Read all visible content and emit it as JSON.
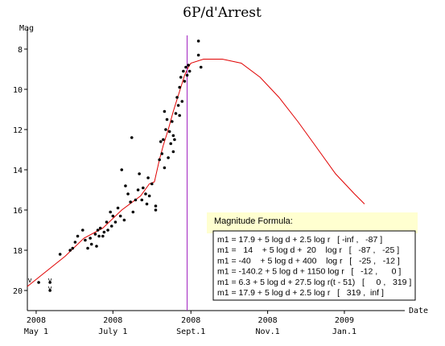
{
  "chart_data": {
    "type": "scatter",
    "title": "6P/d'Arrest",
    "ylabel": "Mag",
    "xlabel": "Date",
    "y_inverted": true,
    "ylim": [
      7,
      21
    ],
    "x_unit": "days relative to Sept.1 2008",
    "xlim": [
      -130,
      170
    ],
    "y_ticks": [
      8,
      10,
      12,
      14,
      16,
      18,
      20
    ],
    "x_ticks": [
      {
        "x": -123,
        "year": "2008",
        "label": "May 1"
      },
      {
        "x": -62,
        "year": "2008",
        "label": "July 1"
      },
      {
        "x": 0,
        "year": "2008",
        "label": "Sept.1"
      },
      {
        "x": 61,
        "year": "2008",
        "label": "Nov.1"
      },
      {
        "x": 122,
        "year": "2009",
        "label": "Jan.1"
      }
    ],
    "perihelion_x": -3,
    "observations": [
      [
        -121,
        19.6
      ],
      [
        -112,
        19.6
      ],
      [
        -112,
        20.0
      ],
      [
        -104,
        18.2
      ],
      [
        -96,
        18.0
      ],
      [
        -94,
        17.9
      ],
      [
        -92,
        17.6
      ],
      [
        -90,
        17.3
      ],
      [
        -86,
        17.0
      ],
      [
        -84,
        17.5
      ],
      [
        -82,
        17.9
      ],
      [
        -80,
        17.4
      ],
      [
        -79,
        17.7
      ],
      [
        -76,
        17.2
      ],
      [
        -75,
        17.8
      ],
      [
        -74,
        17.0
      ],
      [
        -73,
        17.3
      ],
      [
        -72,
        16.9
      ],
      [
        -70,
        17.3
      ],
      [
        -69,
        17.1
      ],
      [
        -67,
        16.6
      ],
      [
        -66,
        17.0
      ],
      [
        -64,
        16.1
      ],
      [
        -63,
        16.8
      ],
      [
        -62,
        16.3
      ],
      [
        -60,
        16.6
      ],
      [
        -58,
        15.9
      ],
      [
        -56,
        16.3
      ],
      [
        -55,
        14.0
      ],
      [
        -53,
        16.5
      ],
      [
        -52,
        14.8
      ],
      [
        -50,
        15.2
      ],
      [
        -48,
        15.6
      ],
      [
        -47,
        12.4
      ],
      [
        -46,
        16.1
      ],
      [
        -44,
        15.5
      ],
      [
        -42,
        15.0
      ],
      [
        -41,
        14.2
      ],
      [
        -39,
        15.5
      ],
      [
        -38,
        14.9
      ],
      [
        -36,
        15.2
      ],
      [
        -35,
        15.7
      ],
      [
        -34,
        14.4
      ],
      [
        -33,
        15.3
      ],
      [
        -31,
        14.7
      ],
      [
        -28,
        16.0
      ],
      [
        -28,
        15.8
      ],
      [
        -25,
        13.5
      ],
      [
        -24,
        12.6
      ],
      [
        -23,
        13.2
      ],
      [
        -22,
        12.5
      ],
      [
        -21,
        13.9
      ],
      [
        -21,
        11.1
      ],
      [
        -20,
        12.0
      ],
      [
        -19,
        11.5
      ],
      [
        -18,
        13.4
      ],
      [
        -17,
        12.1
      ],
      [
        -16,
        12.7
      ],
      [
        -15,
        11.6
      ],
      [
        -14,
        12.3
      ],
      [
        -14,
        13.1
      ],
      [
        -13,
        12.5
      ],
      [
        -12,
        11.2
      ],
      [
        -11,
        10.4
      ],
      [
        -10,
        10.8
      ],
      [
        -9,
        11.3
      ],
      [
        -9,
        9.9
      ],
      [
        -8,
        9.4
      ],
      [
        -7,
        10.6
      ],
      [
        -6,
        9.1
      ],
      [
        -5,
        9.6
      ],
      [
        -4,
        8.9
      ],
      [
        -3,
        9.3
      ],
      [
        -2,
        8.8
      ],
      [
        -1,
        9.1
      ],
      [
        6,
        7.6
      ],
      [
        6,
        8.3
      ],
      [
        8,
        8.9
      ]
    ],
    "fit_curve": [
      [
        -130,
        19.8
      ],
      [
        -100,
        18.3
      ],
      [
        -85,
        17.4
      ],
      [
        -70,
        16.9
      ],
      [
        -55,
        16.0
      ],
      [
        -40,
        15.3
      ],
      [
        -33,
        14.7
      ],
      [
        -29,
        14.6
      ],
      [
        -25,
        13.5
      ],
      [
        -22,
        12.8
      ],
      [
        -18,
        12.0
      ],
      [
        -14,
        11.1
      ],
      [
        -10,
        10.3
      ],
      [
        -5,
        9.3
      ],
      [
        -2,
        8.9
      ],
      [
        0,
        8.7
      ],
      [
        10,
        8.5
      ],
      [
        25,
        8.5
      ],
      [
        40,
        8.7
      ],
      [
        55,
        9.4
      ],
      [
        70,
        10.4
      ],
      [
        85,
        11.6
      ],
      [
        100,
        12.9
      ],
      [
        115,
        14.2
      ],
      [
        130,
        15.2
      ],
      [
        138,
        15.7
      ]
    ],
    "colors": {
      "points": "#000000",
      "fit_curve": "#e00000",
      "perihelion_line": "#a020c0",
      "formula_box": "#ffffd0"
    },
    "formula": {
      "title": "Magnitude Formula:",
      "lines": [
        "m1 = 17.9 + 5 log d + 2.5 log r   [ -inf ,   -87 ]",
        "m1 =   14    + 5 log d +  20    log r   [   -87 ,   -25 ]",
        "m1 = -40    + 5 log d + 400    log r   [   -25 ,   -12 ]",
        "m1 = -140.2 + 5 log d + 1150 log r   [   -12 ,      0 ]",
        "m1 = 6.3 + 5 log d + 27.5 log r(t - 51)   [     0 ,   319 ]",
        "m1 = 17.9 + 5 log d + 2.5 log r   [   319 ,  inf ]"
      ]
    },
    "upper_limit_marks": [
      {
        "x": -128,
        "y": 19.6,
        "text": "v"
      },
      {
        "x": -112,
        "y": 19.6,
        "text": "v"
      },
      {
        "x": -112,
        "y": 20.0,
        "text": "v"
      }
    ]
  }
}
